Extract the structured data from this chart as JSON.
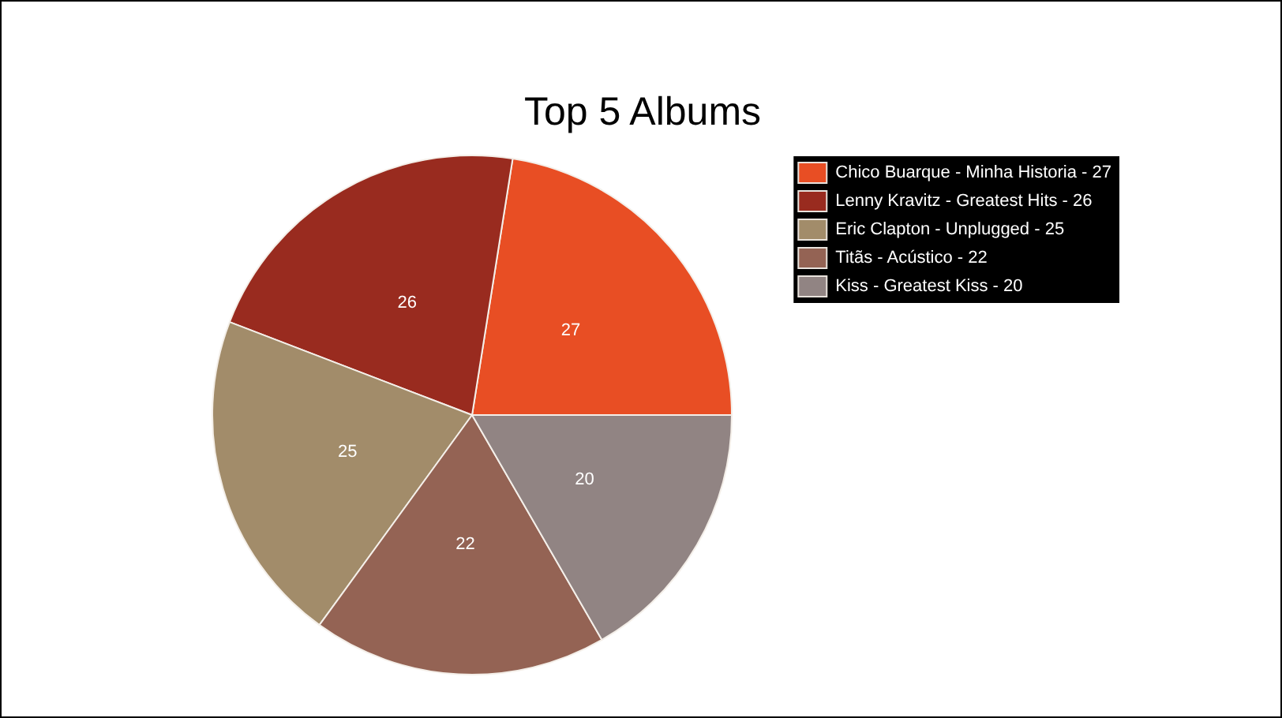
{
  "chart_data": {
    "type": "pie",
    "title": "Top 5 Albums",
    "categories": [
      "Chico Buarque - Minha Historia - 27",
      "Lenny Kravitz - Greatest Hits - 26",
      "Eric Clapton - Unplugged - 25",
      "Titãs - Acústico - 22",
      "Kiss - Greatest Kiss - 20"
    ],
    "values": [
      27,
      26,
      25,
      22,
      20
    ],
    "colors": [
      "#e84e24",
      "#992b1f",
      "#a28c6a",
      "#946354",
      "#918483"
    ],
    "legend": "top right",
    "data_labels": true
  }
}
